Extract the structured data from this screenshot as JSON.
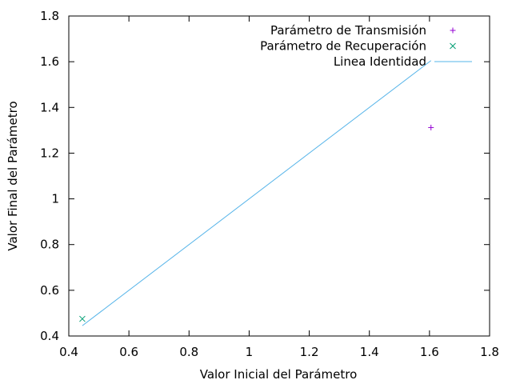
{
  "chart_data": {
    "type": "scatter",
    "xlabel": "Valor Inicial del Parámetro",
    "ylabel": "Valor Final del Parámetro",
    "xlim": [
      0.4,
      1.8
    ],
    "ylim": [
      0.4,
      1.8
    ],
    "xticks": [
      0.4,
      0.6,
      0.8,
      1.0,
      1.2,
      1.4,
      1.6,
      1.8
    ],
    "xtick_labels": [
      "0.4",
      "0.6",
      "0.8",
      "1",
      "1.2",
      "1.4",
      "1.6",
      "1.8"
    ],
    "yticks": [
      0.4,
      0.6,
      0.8,
      1.0,
      1.2,
      1.4,
      1.6,
      1.8
    ],
    "ytick_labels": [
      "0.4",
      "0.6",
      "0.8",
      "1",
      "1.2",
      "1.4",
      "1.6",
      "1.8"
    ],
    "grid": false,
    "legend_position": "top-right",
    "series": [
      {
        "name": "Parámetro de Transmisión",
        "marker": "plus",
        "color": "#9400d3",
        "x": [
          1.605
        ],
        "y": [
          1.312
        ]
      },
      {
        "name": "Parámetro de Recuperación",
        "marker": "cross",
        "color": "#009e73",
        "x": [
          0.445
        ],
        "y": [
          0.475
        ]
      },
      {
        "name": "Linea Identidad",
        "marker": "line",
        "color": "#56b4e9",
        "x": [
          0.445,
          1.605
        ],
        "y": [
          0.445,
          1.605
        ]
      }
    ]
  }
}
